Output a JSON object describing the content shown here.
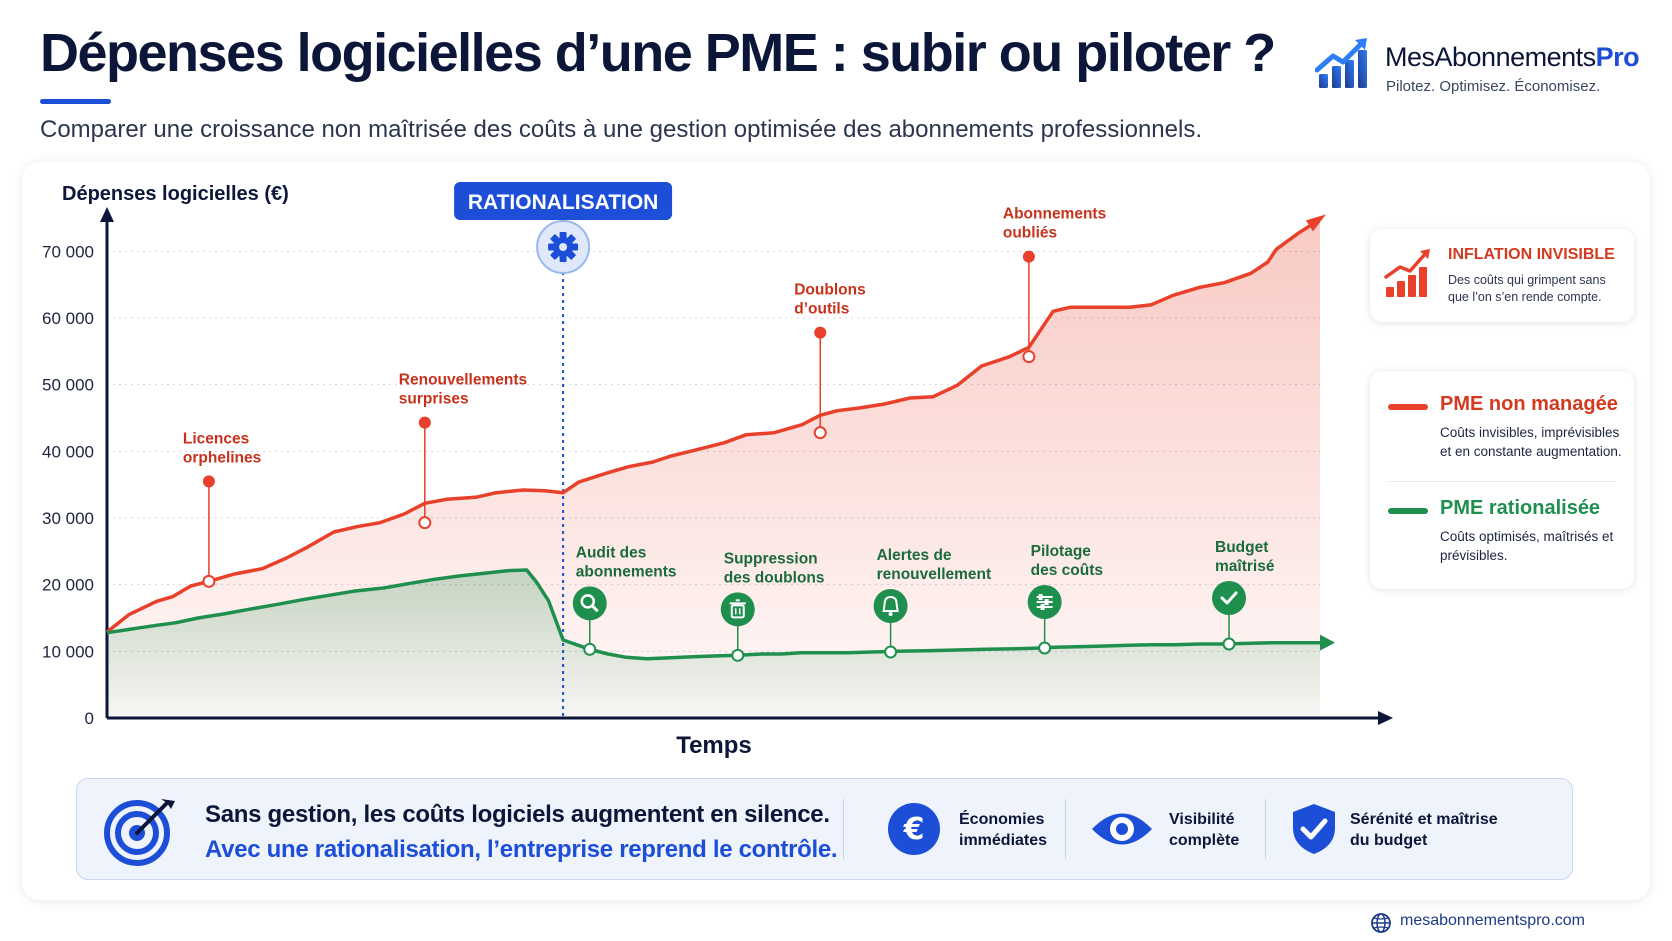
{
  "header": {
    "title": "Dépenses logicielles d’une PME : subir ou piloter ?",
    "subtitle": "Comparer une croissance non maîtrisée des coûts à une gestion optimisée des abonnements professionnels."
  },
  "brand": {
    "name_main": "MesAbonnements",
    "name_accent": "Pro",
    "tagline": "Pilotez. Optimisez. Économisez."
  },
  "colors": {
    "red": "#e8402a",
    "green": "#1f8f4e",
    "blue": "#1d4ed8",
    "navy": "#0c1638"
  },
  "chart_data": {
    "type": "line",
    "ylabel": "Dépenses logicielles (€)",
    "xlabel": "Temps",
    "ylim": [
      0,
      75000
    ],
    "yticks": [
      0,
      10000,
      20000,
      30000,
      40000,
      50000,
      60000,
      70000
    ],
    "ytick_labels": [
      "0",
      "10 000",
      "20 000",
      "30 000",
      "40 000",
      "50 000",
      "60 000",
      "70 000"
    ],
    "x_range": [
      0,
      100
    ],
    "grid": "horizontal-dotted",
    "rationalisation": {
      "label": "RATIONALISATION",
      "x": 37.6
    },
    "series": [
      {
        "name": "PME non managée",
        "color": "#e8402a",
        "x": [
          0,
          1.8,
          4.1,
          5.4,
          6.9,
          8.4,
          10.5,
          12.8,
          14.8,
          16.5,
          18.7,
          20.6,
          22.5,
          24.5,
          26.2,
          28.0,
          30.4,
          32.1,
          34.3,
          36.1,
          37.6,
          38.9,
          41.3,
          43.0,
          45.0,
          46.5,
          48.3,
          50.9,
          52.7,
          55.0,
          57.3,
          58.8,
          60.2,
          62.0,
          64.1,
          66.2,
          68.1,
          70.1,
          72.1,
          74.4,
          76.0,
          78.0,
          79.4,
          82.3,
          84.3,
          86.1,
          87.9,
          90.1,
          92.1,
          94.3,
          95.7,
          96.4,
          98.2,
          100
        ],
        "values": [
          12900,
          15500,
          17500,
          18200,
          19800,
          20500,
          21600,
          22400,
          24000,
          25600,
          27900,
          28700,
          29300,
          30600,
          32200,
          32800,
          33100,
          33800,
          34200,
          34100,
          33800,
          35400,
          36800,
          37700,
          38400,
          39300,
          40100,
          41300,
          42500,
          42800,
          44000,
          45400,
          46100,
          46500,
          47100,
          48000,
          48200,
          49900,
          52800,
          54200,
          55600,
          61000,
          61600,
          61600,
          61600,
          62000,
          63400,
          64600,
          65300,
          66700,
          68400,
          70300,
          72700,
          74800
        ]
      },
      {
        "name": "PME rationalisée",
        "color": "#1f8f4e",
        "x": [
          0,
          2.2,
          4.1,
          5.7,
          7.5,
          9.6,
          11.7,
          13.9,
          16.3,
          18.3,
          20.3,
          22.8,
          25.0,
          27.0,
          29.0,
          31.1,
          33.0,
          34.6,
          35.4,
          36.4,
          37.6,
          39.8,
          41.3,
          42.8,
          44.5,
          46.0,
          48.3,
          50.0,
          52.0,
          54.0,
          55.6,
          57.2,
          59.0,
          61.0,
          63.0,
          65.0,
          67.5,
          70.0,
          72.5,
          75.0,
          77.0,
          78.1,
          80.0,
          82.3,
          84.3,
          86.2,
          88.0,
          90.1,
          92.0,
          94.3,
          96.2,
          97.7,
          100
        ],
        "values": [
          12800,
          13400,
          13900,
          14300,
          15000,
          15600,
          16300,
          17000,
          17800,
          18400,
          19000,
          19500,
          20200,
          20800,
          21300,
          21700,
          22100,
          22200,
          20400,
          17600,
          11700,
          10300,
          9600,
          9100,
          8900,
          9000,
          9200,
          9300,
          9400,
          9600,
          9600,
          9800,
          9800,
          9800,
          9900,
          10000,
          10100,
          10200,
          10300,
          10400,
          10500,
          10600,
          10700,
          10800,
          10900,
          11000,
          11000,
          11100,
          11100,
          11200,
          11300,
          11300,
          11300
        ]
      }
    ],
    "annotations_red": [
      {
        "label": [
          "Licences",
          "orphelines"
        ],
        "x": 8.4,
        "y": 20500
      },
      {
        "label": [
          "Renouvellements",
          "surprises"
        ],
        "x": 26.2,
        "y": 29300
      },
      {
        "label": [
          "Doublons",
          "d’outils"
        ],
        "x": 58.8,
        "y": 42800
      },
      {
        "label": [
          "Abonnements",
          "oubliés"
        ],
        "x": 76.0,
        "y": 54200
      }
    ],
    "annotations_green": [
      {
        "label": [
          "Audit des",
          "abonnements"
        ],
        "x": 39.8,
        "y": 10300,
        "icon": "search-icon"
      },
      {
        "label": [
          "Suppression",
          "des doublons"
        ],
        "x": 52.0,
        "y": 9400,
        "icon": "trash-icon"
      },
      {
        "label": [
          "Alertes de",
          "renouvellement"
        ],
        "x": 64.6,
        "y": 9900,
        "icon": "bell-icon"
      },
      {
        "label": [
          "Pilotage",
          "des coûts"
        ],
        "x": 77.3,
        "y": 10500,
        "icon": "sliders-icon"
      },
      {
        "label": [
          "Budget",
          "maîtrisé"
        ],
        "x": 92.5,
        "y": 11100,
        "icon": "check-icon"
      }
    ]
  },
  "inflation_card": {
    "title": "INFLATION INVISIBLE",
    "text": "Des coûts qui grimpent sans que l’on s’en rende compte."
  },
  "legend": {
    "unmanaged": {
      "name": "PME non managée",
      "desc": "Coûts invisibles, imprévisibles et en constante augmentation."
    },
    "managed": {
      "name": "PME rationalisée",
      "desc": "Coûts optimisés, maîtrisés et prévisibles."
    }
  },
  "summary": {
    "line1": "Sans gestion, les coûts logiciels augmentent en silence.",
    "line2": "Avec une rationalisation, l’entreprise reprend le contrôle.",
    "benefits": [
      {
        "icon": "euro-icon",
        "text": "Économies immédiates"
      },
      {
        "icon": "eye-icon",
        "text": "Visibilité complète"
      },
      {
        "icon": "shield-check-icon",
        "text": "Sérénité et maîtrise du budget"
      }
    ]
  },
  "footer": {
    "url": "mesabonnementspro.com"
  }
}
